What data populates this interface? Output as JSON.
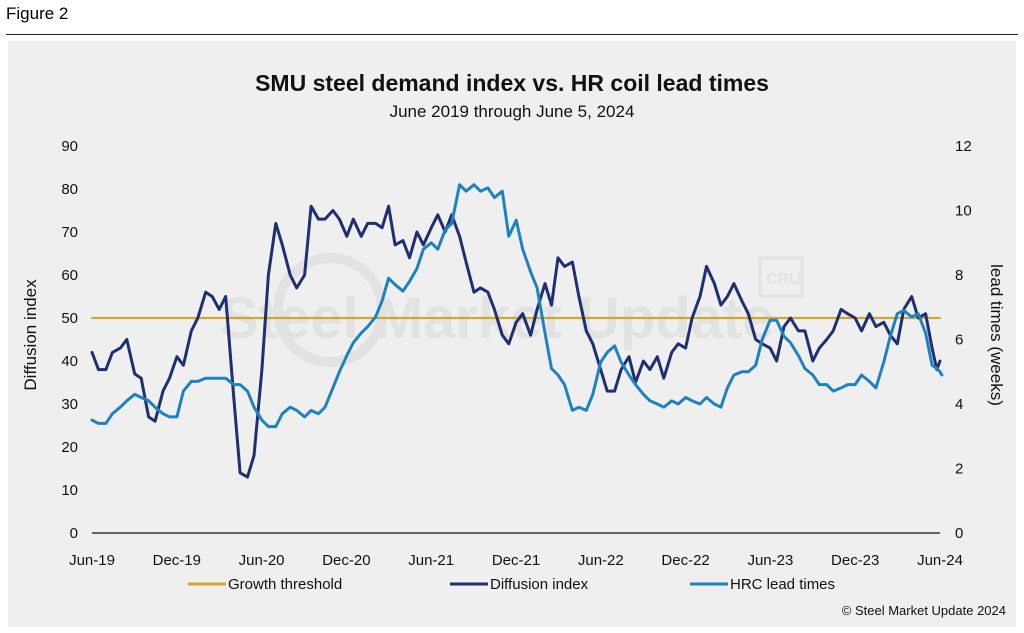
{
  "figure_label": "Figure 2",
  "copyright": "© Steel Market Update 2024",
  "watermark": {
    "text": "Steel Market Update",
    "badge": "CRU"
  },
  "colors": {
    "threshold": "#d4a72c",
    "diffusion": "#1f2f6f",
    "hrc": "#1f82c0",
    "panel": "#efeff0"
  },
  "chart_data": {
    "type": "line",
    "title": "SMU steel demand index vs. HR coil lead times",
    "subtitle": "June 2019 through June 5, 2024",
    "ylabel": "Diffusion index",
    "y2label": "lead times (weeks)",
    "ylim": [
      0,
      90
    ],
    "y2lim": [
      0,
      12
    ],
    "yticks": [
      "0",
      "10",
      "20",
      "30",
      "40",
      "50",
      "60",
      "70",
      "80",
      "90"
    ],
    "y2ticks": [
      "0",
      "2",
      "4",
      "6",
      "8",
      "10",
      "12"
    ],
    "xticks": [
      "Jun-19",
      "Dec-19",
      "Jun-20",
      "Dec-20",
      "Jun-21",
      "Dec-21",
      "Jun-22",
      "Dec-22",
      "Jun-23",
      "Dec-23",
      "Jun-24"
    ],
    "xlim": [
      "2019-06",
      "2024-06"
    ],
    "legend_position": "bottom",
    "series": [
      {
        "name": "Growth threshold",
        "axis": "left",
        "points": [
          [
            "2019-06",
            50
          ],
          [
            "2024-06",
            50
          ]
        ]
      },
      {
        "name": "Diffusion index",
        "axis": "left",
        "points": [
          [
            "2019-06",
            42
          ],
          [
            "2019-06-15",
            38
          ],
          [
            "2019-07",
            38
          ],
          [
            "2019-07-15",
            42
          ],
          [
            "2019-08",
            43
          ],
          [
            "2019-08-15",
            45
          ],
          [
            "2019-09",
            37
          ],
          [
            "2019-09-15",
            36
          ],
          [
            "2019-10",
            27
          ],
          [
            "2019-10-15",
            26
          ],
          [
            "2019-11",
            33
          ],
          [
            "2019-11-15",
            36
          ],
          [
            "2019-12",
            41
          ],
          [
            "2019-12-15",
            39
          ],
          [
            "2020-01",
            47
          ],
          [
            "2020-01-15",
            50
          ],
          [
            "2020-02",
            56
          ],
          [
            "2020-02-15",
            55
          ],
          [
            "2020-03",
            52
          ],
          [
            "2020-03-15",
            55
          ],
          [
            "2020-04",
            32
          ],
          [
            "2020-04-15",
            14
          ],
          [
            "2020-05",
            13
          ],
          [
            "2020-05-15",
            18
          ],
          [
            "2020-06",
            38
          ],
          [
            "2020-06-15",
            60
          ],
          [
            "2020-07",
            72
          ],
          [
            "2020-07-15",
            67
          ],
          [
            "2020-08",
            60
          ],
          [
            "2020-08-15",
            57
          ],
          [
            "2020-09",
            60
          ],
          [
            "2020-09-15",
            76
          ],
          [
            "2020-10",
            73
          ],
          [
            "2020-10-15",
            73
          ],
          [
            "2020-11",
            75
          ],
          [
            "2020-11-15",
            73
          ],
          [
            "2020-12",
            69
          ],
          [
            "2020-12-15",
            73
          ],
          [
            "2021-01",
            69
          ],
          [
            "2021-01-15",
            72
          ],
          [
            "2021-02",
            72
          ],
          [
            "2021-02-15",
            71
          ],
          [
            "2021-03",
            76
          ],
          [
            "2021-03-15",
            67
          ],
          [
            "2021-04",
            68
          ],
          [
            "2021-04-15",
            64
          ],
          [
            "2021-05",
            70
          ],
          [
            "2021-05-15",
            67
          ],
          [
            "2021-06",
            71
          ],
          [
            "2021-06-15",
            74
          ],
          [
            "2021-07",
            70
          ],
          [
            "2021-07-15",
            74
          ],
          [
            "2021-08",
            69
          ],
          [
            "2021-08-15",
            63
          ],
          [
            "2021-09",
            56
          ],
          [
            "2021-09-15",
            57
          ],
          [
            "2021-10",
            56
          ],
          [
            "2021-10-15",
            52
          ],
          [
            "2021-11",
            46
          ],
          [
            "2021-11-15",
            44
          ],
          [
            "2021-12",
            49
          ],
          [
            "2021-12-15",
            51
          ],
          [
            "2022-01",
            46
          ],
          [
            "2022-01-15",
            52
          ],
          [
            "2022-02",
            58
          ],
          [
            "2022-02-15",
            53
          ],
          [
            "2022-03",
            64
          ],
          [
            "2022-03-15",
            62
          ],
          [
            "2022-04",
            63
          ],
          [
            "2022-04-15",
            55
          ],
          [
            "2022-05",
            47
          ],
          [
            "2022-05-15",
            44
          ],
          [
            "2022-06",
            38
          ],
          [
            "2022-06-15",
            33
          ],
          [
            "2022-07",
            33
          ],
          [
            "2022-07-15",
            38
          ],
          [
            "2022-08",
            41
          ],
          [
            "2022-08-15",
            35
          ],
          [
            "2022-09",
            40
          ],
          [
            "2022-09-15",
            38
          ],
          [
            "2022-10",
            41
          ],
          [
            "2022-10-15",
            36
          ],
          [
            "2022-11",
            42
          ],
          [
            "2022-11-15",
            44
          ],
          [
            "2022-12",
            43
          ],
          [
            "2022-12-15",
            50
          ],
          [
            "2023-01",
            55
          ],
          [
            "2023-01-15",
            62
          ],
          [
            "2023-02",
            58
          ],
          [
            "2023-02-15",
            53
          ],
          [
            "2023-03",
            55
          ],
          [
            "2023-03-15",
            58
          ],
          [
            "2023-04",
            54
          ],
          [
            "2023-04-15",
            51
          ],
          [
            "2023-05",
            45
          ],
          [
            "2023-05-15",
            44
          ],
          [
            "2023-06",
            43
          ],
          [
            "2023-06-15",
            40
          ],
          [
            "2023-07",
            48
          ],
          [
            "2023-07-15",
            50
          ],
          [
            "2023-08",
            47
          ],
          [
            "2023-08-15",
            47
          ],
          [
            "2023-09",
            40
          ],
          [
            "2023-09-15",
            43
          ],
          [
            "2023-10",
            45
          ],
          [
            "2023-10-15",
            47
          ],
          [
            "2023-11",
            52
          ],
          [
            "2023-11-15",
            51
          ],
          [
            "2023-12",
            50
          ],
          [
            "2023-12-15",
            47
          ],
          [
            "2024-01",
            51
          ],
          [
            "2024-01-15",
            48
          ],
          [
            "2024-02",
            49
          ],
          [
            "2024-02-15",
            46
          ],
          [
            "2024-03",
            44
          ],
          [
            "2024-03-15",
            52
          ],
          [
            "2024-04",
            55
          ],
          [
            "2024-04-15",
            50
          ],
          [
            "2024-05",
            51
          ],
          [
            "2024-05-15",
            43
          ],
          [
            "2024-05-25",
            38
          ],
          [
            "2024-06",
            40
          ]
        ]
      },
      {
        "name": "HRC lead times",
        "axis": "right",
        "points": [
          [
            "2019-06",
            3.5
          ],
          [
            "2019-06-15",
            3.4
          ],
          [
            "2019-07",
            3.4
          ],
          [
            "2019-07-15",
            3.7
          ],
          [
            "2019-08",
            3.9
          ],
          [
            "2019-08-15",
            4.1
          ],
          [
            "2019-09",
            4.3
          ],
          [
            "2019-09-15",
            4.2
          ],
          [
            "2019-10",
            4.1
          ],
          [
            "2019-10-15",
            3.9
          ],
          [
            "2019-11",
            3.7
          ],
          [
            "2019-11-15",
            3.6
          ],
          [
            "2019-12",
            3.6
          ],
          [
            "2019-12-15",
            4.4
          ],
          [
            "2020-01",
            4.7
          ],
          [
            "2020-01-15",
            4.7
          ],
          [
            "2020-02",
            4.8
          ],
          [
            "2020-02-15",
            4.8
          ],
          [
            "2020-03",
            4.8
          ],
          [
            "2020-03-15",
            4.8
          ],
          [
            "2020-04",
            4.6
          ],
          [
            "2020-04-15",
            4.6
          ],
          [
            "2020-05",
            4.4
          ],
          [
            "2020-05-15",
            3.9
          ],
          [
            "2020-06",
            3.5
          ],
          [
            "2020-06-15",
            3.3
          ],
          [
            "2020-07",
            3.3
          ],
          [
            "2020-07-15",
            3.7
          ],
          [
            "2020-08",
            3.9
          ],
          [
            "2020-08-15",
            3.8
          ],
          [
            "2020-09",
            3.6
          ],
          [
            "2020-09-15",
            3.8
          ],
          [
            "2020-10",
            3.7
          ],
          [
            "2020-10-15",
            3.9
          ],
          [
            "2020-11",
            4.5
          ],
          [
            "2020-11-15",
            5.0
          ],
          [
            "2020-12",
            5.5
          ],
          [
            "2020-12-15",
            5.9
          ],
          [
            "2021-01",
            6.2
          ],
          [
            "2021-01-15",
            6.4
          ],
          [
            "2021-02",
            6.7
          ],
          [
            "2021-02-15",
            7.2
          ],
          [
            "2021-03",
            7.9
          ],
          [
            "2021-03-15",
            7.7
          ],
          [
            "2021-04",
            7.5
          ],
          [
            "2021-04-15",
            7.8
          ],
          [
            "2021-05",
            8.2
          ],
          [
            "2021-05-15",
            8.8
          ],
          [
            "2021-06",
            9.0
          ],
          [
            "2021-06-15",
            8.8
          ],
          [
            "2021-07",
            9.4
          ],
          [
            "2021-07-15",
            9.6
          ],
          [
            "2021-08",
            10.8
          ],
          [
            "2021-08-15",
            10.6
          ],
          [
            "2021-09",
            10.8
          ],
          [
            "2021-09-15",
            10.6
          ],
          [
            "2021-10",
            10.7
          ],
          [
            "2021-10-15",
            10.4
          ],
          [
            "2021-11",
            10.6
          ],
          [
            "2021-11-15",
            9.2
          ],
          [
            "2021-12",
            9.7
          ],
          [
            "2021-12-15",
            8.8
          ],
          [
            "2022-01",
            8.1
          ],
          [
            "2022-01-15",
            7.6
          ],
          [
            "2022-02",
            6.2
          ],
          [
            "2022-02-15",
            5.1
          ],
          [
            "2022-03",
            4.9
          ],
          [
            "2022-03-15",
            4.6
          ],
          [
            "2022-04",
            3.8
          ],
          [
            "2022-04-15",
            3.9
          ],
          [
            "2022-05",
            3.8
          ],
          [
            "2022-05-15",
            4.3
          ],
          [
            "2022-06",
            5.3
          ],
          [
            "2022-06-15",
            5.6
          ],
          [
            "2022-07",
            5.8
          ],
          [
            "2022-07-15",
            5.3
          ],
          [
            "2022-08",
            4.9
          ],
          [
            "2022-08-15",
            4.6
          ],
          [
            "2022-09",
            4.3
          ],
          [
            "2022-09-15",
            4.1
          ],
          [
            "2022-10",
            4.0
          ],
          [
            "2022-10-15",
            3.9
          ],
          [
            "2022-11",
            4.1
          ],
          [
            "2022-11-15",
            4.0
          ],
          [
            "2022-12",
            4.2
          ],
          [
            "2022-12-15",
            4.1
          ],
          [
            "2023-01",
            4.0
          ],
          [
            "2023-01-15",
            4.2
          ],
          [
            "2023-02",
            4.0
          ],
          [
            "2023-02-15",
            3.9
          ],
          [
            "2023-03",
            4.5
          ],
          [
            "2023-03-15",
            4.9
          ],
          [
            "2023-04",
            5.0
          ],
          [
            "2023-04-15",
            5.0
          ],
          [
            "2023-05",
            5.2
          ],
          [
            "2023-05-15",
            6.0
          ],
          [
            "2023-06",
            6.6
          ],
          [
            "2023-06-15",
            6.6
          ],
          [
            "2023-07",
            6.1
          ],
          [
            "2023-07-15",
            5.9
          ],
          [
            "2023-08",
            5.5
          ],
          [
            "2023-08-15",
            5.1
          ],
          [
            "2023-09",
            4.9
          ],
          [
            "2023-09-15",
            4.6
          ],
          [
            "2023-10",
            4.6
          ],
          [
            "2023-10-15",
            4.4
          ],
          [
            "2023-11",
            4.5
          ],
          [
            "2023-11-15",
            4.6
          ],
          [
            "2023-12",
            4.6
          ],
          [
            "2023-12-15",
            4.9
          ],
          [
            "2024-01",
            4.7
          ],
          [
            "2024-01-15",
            4.5
          ],
          [
            "2024-02",
            5.3
          ],
          [
            "2024-02-15",
            6.1
          ],
          [
            "2024-03",
            6.8
          ],
          [
            "2024-03-15",
            6.9
          ],
          [
            "2024-04",
            6.7
          ],
          [
            "2024-04-15",
            6.8
          ],
          [
            "2024-05",
            6.2
          ],
          [
            "2024-05-15",
            5.2
          ],
          [
            "2024-05-25",
            5.1
          ],
          [
            "2024-06",
            5.0
          ],
          [
            "2024-06-05",
            4.9
          ]
        ]
      }
    ]
  }
}
